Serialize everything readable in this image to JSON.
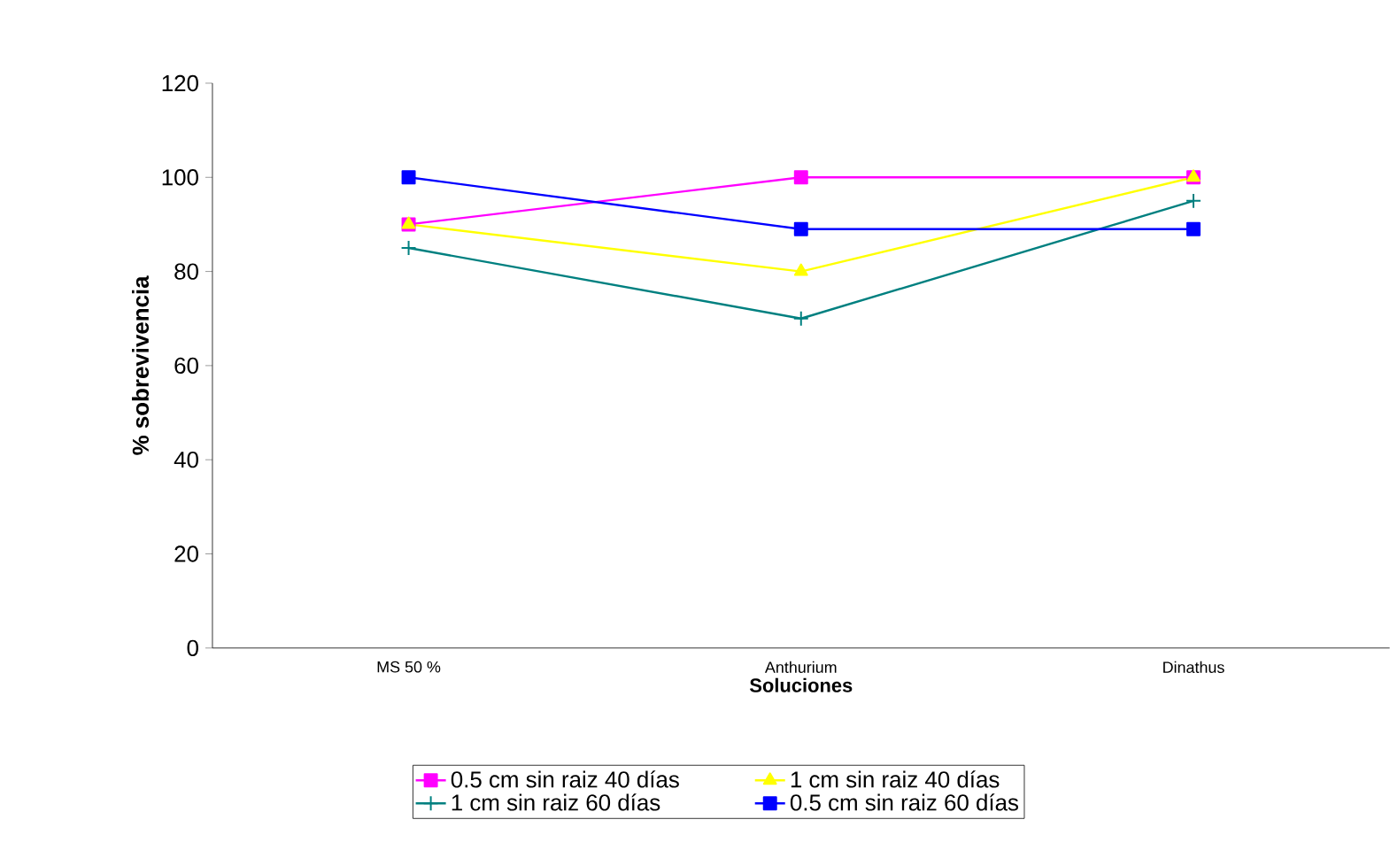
{
  "chart_data": {
    "type": "line",
    "xlabel": "Soluciones",
    "ylabel": "% sobrevivencia",
    "categories": [
      "MS 50 %",
      "Anthurium",
      "Dinathus"
    ],
    "ylim": [
      0,
      120
    ],
    "yticks": [
      0,
      20,
      40,
      60,
      80,
      100,
      120
    ],
    "grid": false,
    "legend": "bottom",
    "line_style": "solid",
    "series": [
      {
        "name": "0.5 cm sin raiz 40 días",
        "color": "#ff00ff",
        "marker": "square",
        "values": [
          90,
          100,
          100
        ]
      },
      {
        "name": "1 cm sin raiz 40 días",
        "color": "#ffff00",
        "marker": "triangle",
        "values": [
          90,
          80,
          100
        ]
      },
      {
        "name": "1 cm sin raiz 60 días",
        "color": "#008080",
        "marker": "cross",
        "values": [
          85,
          70,
          95
        ]
      },
      {
        "name": "0.5 cm sin raiz 60 días",
        "color": "#0000ff",
        "marker": "square",
        "values": [
          100,
          89,
          89
        ]
      }
    ]
  }
}
